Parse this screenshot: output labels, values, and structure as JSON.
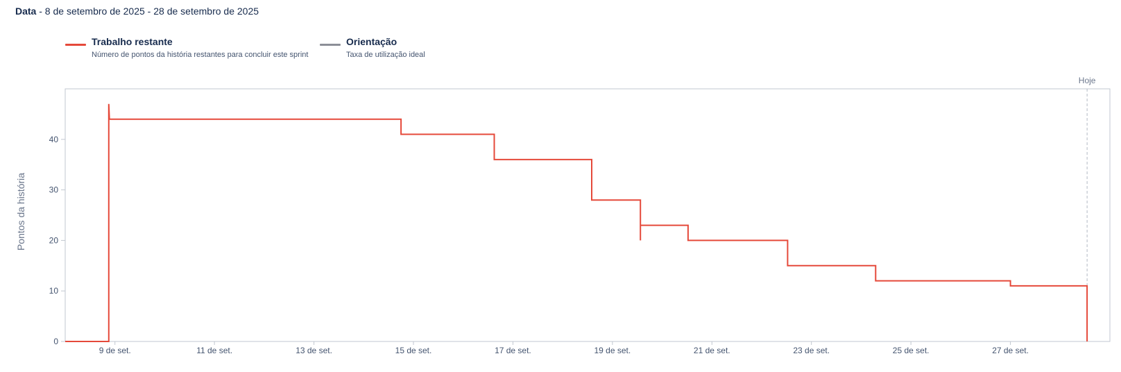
{
  "date_filter": {
    "label": "Data",
    "range": "- 8 de setembro de 2025 - 28 de setembro de 2025"
  },
  "legend": [
    {
      "title": "Trabalho restante",
      "description": "Número de pontos da história restantes para concluir este sprint",
      "color": "#e5493a"
    },
    {
      "title": "Orientação",
      "description": "Taxa de utilização ideal",
      "color": "#8c8f97"
    }
  ],
  "chart_data": {
    "type": "line",
    "ylabel": "Pontos da história",
    "ylim": [
      0,
      50
    ],
    "yticks": [
      0,
      10,
      20,
      30,
      40
    ],
    "xlim": [
      "2025-09-08",
      "2025-09-29"
    ],
    "xticks": [
      {
        "date": "2025-09-09",
        "label": "9 de set."
      },
      {
        "date": "2025-09-11",
        "label": "11 de set."
      },
      {
        "date": "2025-09-13",
        "label": "13 de set."
      },
      {
        "date": "2025-09-15",
        "label": "15 de set."
      },
      {
        "date": "2025-09-17",
        "label": "17 de set."
      },
      {
        "date": "2025-09-19",
        "label": "19 de set."
      },
      {
        "date": "2025-09-21",
        "label": "21 de set."
      },
      {
        "date": "2025-09-23",
        "label": "23 de set."
      },
      {
        "date": "2025-09-25",
        "label": "25 de set."
      },
      {
        "date": "2025-09-27",
        "label": "27 de set."
      }
    ],
    "today": {
      "label": "Hoje",
      "date": "2025-09-28T13:00"
    },
    "series": [
      {
        "name": "Trabalho restante",
        "color": "#e5493a",
        "step": true,
        "points": [
          {
            "x": "2025-09-08T00:00",
            "y": 0
          },
          {
            "x": "2025-09-08T21:00",
            "y": 0
          },
          {
            "x": "2025-09-08T21:00",
            "y": 47
          },
          {
            "x": "2025-09-08T21:20",
            "y": 44
          },
          {
            "x": "2025-09-14T18:00",
            "y": 44
          },
          {
            "x": "2025-09-14T18:00",
            "y": 41
          },
          {
            "x": "2025-09-16T15:00",
            "y": 41
          },
          {
            "x": "2025-09-16T15:00",
            "y": 36
          },
          {
            "x": "2025-09-18T14:00",
            "y": 36
          },
          {
            "x": "2025-09-18T14:00",
            "y": 28
          },
          {
            "x": "2025-09-19T13:30",
            "y": 28
          },
          {
            "x": "2025-09-19T13:30",
            "y": 20
          },
          {
            "x": "2025-09-19T13:30",
            "y": 23
          },
          {
            "x": "2025-09-20T12:30",
            "y": 23
          },
          {
            "x": "2025-09-20T12:30",
            "y": 20
          },
          {
            "x": "2025-09-22T12:30",
            "y": 20
          },
          {
            "x": "2025-09-22T12:30",
            "y": 15
          },
          {
            "x": "2025-09-24T07:00",
            "y": 15
          },
          {
            "x": "2025-09-24T07:00",
            "y": 12
          },
          {
            "x": "2025-09-27T00:00",
            "y": 12
          },
          {
            "x": "2025-09-27T00:00",
            "y": 11
          },
          {
            "x": "2025-09-28T13:00",
            "y": 11
          },
          {
            "x": "2025-09-28T13:00",
            "y": 0
          }
        ]
      }
    ]
  }
}
